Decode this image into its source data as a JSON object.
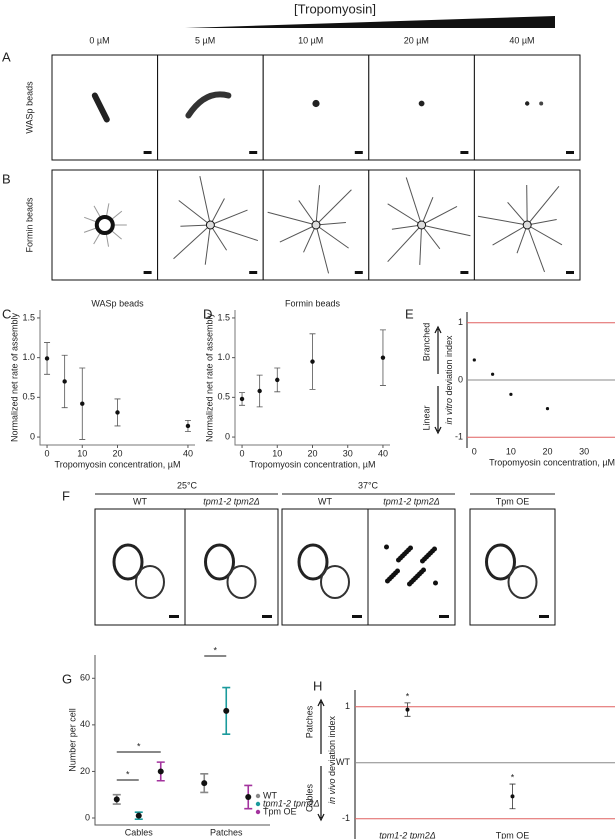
{
  "figure": {
    "header": "[Tropomyosin]",
    "concentrations": [
      "0 µM",
      "5 µM",
      "10 µM",
      "20 µM",
      "40 µM"
    ],
    "row_labels": [
      "WASp beads",
      "Formin beads"
    ],
    "panel_labels": [
      "A",
      "B",
      "C",
      "D",
      "E",
      "F",
      "G",
      "H"
    ],
    "f_temperatures": [
      "25°C",
      "37°C"
    ],
    "f_strains": [
      "WT",
      "tpm1-2 tpm2Δ",
      "WT",
      "tpm1-2 tpm2Δ",
      "Tpm OE"
    ]
  },
  "chart_data": [
    {
      "type": "errorpoint",
      "title": "WASp beads",
      "x_label": "Tropomyosin concentration, µM",
      "y_label": "Normalized net rate of assembly",
      "x": [
        0,
        5,
        10,
        20,
        40
      ],
      "values": [
        0.99,
        0.7,
        0.42,
        0.31,
        0.14
      ],
      "errors": [
        0.2,
        0.33,
        0.45,
        0.17,
        0.07
      ],
      "xlim": [
        -2,
        42
      ],
      "ylim": [
        -0.1,
        1.6
      ],
      "xticks": [
        0,
        10,
        20,
        40
      ],
      "yticks": [
        0,
        0.5,
        {
          "value": 1,
          "label": "1.0"
        },
        1.5
      ],
      "color": "#111111"
    },
    {
      "type": "errorpoint",
      "title": "Formin beads",
      "x_label": "Tropomyosin concentration, µM",
      "y_label": "Normalized net rate of assembly",
      "x": [
        0,
        5,
        10,
        20,
        40
      ],
      "values": [
        0.48,
        0.58,
        0.72,
        0.95,
        1.0
      ],
      "errors": [
        0.08,
        0.2,
        0.15,
        0.35,
        0.35
      ],
      "xlim": [
        -2,
        42
      ],
      "ylim": [
        -0.1,
        1.6
      ],
      "xticks": [
        0,
        10,
        20,
        30,
        40
      ],
      "yticks": [
        0,
        0.5,
        {
          "value": 1,
          "label": "1.0"
        },
        1.5
      ],
      "color": "#111111"
    },
    {
      "type": "deviation",
      "x_label": "Tropomyosin concentration, µM",
      "y_label_italic": "in vitro",
      "y_label": "deviation index",
      "upper_label": "Branched",
      "lower_label": "Linear",
      "x": [
        0,
        5,
        10,
        20
      ],
      "values": [
        0.35,
        0.1,
        -0.25,
        -0.5
      ],
      "xlim": [
        -2,
        42
      ],
      "ylim": [
        -1.1,
        1.1
      ],
      "xticks": [
        0,
        10,
        20,
        30,
        40
      ],
      "yticks": [
        -1,
        0,
        1
      ],
      "reference_color": "#e06060",
      "color": "#111111"
    },
    {
      "type": "grouped-dot",
      "y_label": "Number per cell",
      "categories": [
        "Cables",
        "Patches"
      ],
      "series": [
        {
          "name": "WT",
          "color": "#888888",
          "values": [
            8,
            15
          ],
          "errors": [
            2,
            4
          ]
        },
        {
          "name": "tpm1-2 tpm2Δ",
          "color": "#1b9a9c",
          "values": [
            1,
            46
          ],
          "errors": [
            1.5,
            10
          ]
        },
        {
          "name": "Tpm OE",
          "color": "#a3339e",
          "values": [
            20,
            9
          ],
          "errors": [
            4,
            5
          ]
        }
      ],
      "ylim": [
        -3,
        70
      ],
      "yticks": [
        0,
        20,
        40,
        60
      ],
      "annotations": [
        "*",
        "*",
        "*"
      ]
    },
    {
      "type": "deviation-cat",
      "categories": [
        "tpm1-2 tpm2Δ",
        "Tpm OE"
      ],
      "values": [
        0.95,
        -0.6
      ],
      "errors": [
        0.12,
        0.22
      ],
      "y_label_italic": "in vivo",
      "y_label": "deviation index",
      "upper_label": "Patches",
      "lower_label": "Cables",
      "ylim": [
        -1.2,
        1.3
      ],
      "yticks": [
        -1,
        {
          "value": 0,
          "label": "WT"
        },
        1
      ],
      "reference_color": "#e06060",
      "color": "#111111",
      "annotations": [
        "*",
        "*"
      ]
    }
  ]
}
